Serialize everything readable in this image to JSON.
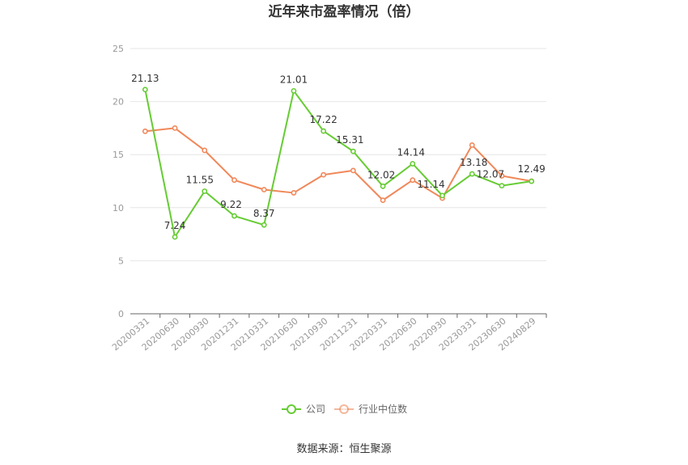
{
  "chart_data": {
    "type": "line",
    "title": "近年来市盈率情况（倍）",
    "xlabel": "",
    "ylabel": "",
    "ylim": [
      0,
      25
    ],
    "yticks": [
      0,
      5,
      10,
      15,
      20,
      25
    ],
    "grid": true,
    "legend_position": "bottom",
    "categories": [
      "20200331",
      "20200630",
      "20200930",
      "20201231",
      "20210331",
      "20210630",
      "20210930",
      "20211231",
      "20220331",
      "20220630",
      "20220930",
      "20230331",
      "20230630",
      "20240829"
    ],
    "series": [
      {
        "name": "公司",
        "color": "#66cc33",
        "values": [
          21.13,
          7.24,
          11.55,
          9.22,
          8.37,
          21.01,
          17.22,
          15.31,
          12.02,
          14.14,
          11.14,
          13.18,
          12.07,
          12.49
        ],
        "labels": [
          "21.13",
          "7.24",
          "11.55",
          "9.22",
          "8.37",
          "21.01",
          "17.22",
          "15.31",
          "12.02",
          "14.14",
          "11.14",
          "13.18",
          "12.07",
          "12.49"
        ]
      },
      {
        "name": "行业中位数",
        "color": "#f0885a",
        "values": [
          17.2,
          17.5,
          15.4,
          12.6,
          11.7,
          11.4,
          13.1,
          13.5,
          10.7,
          12.6,
          10.9,
          15.9,
          13.0,
          12.5
        ]
      }
    ]
  },
  "source": "数据来源：恒生聚源"
}
